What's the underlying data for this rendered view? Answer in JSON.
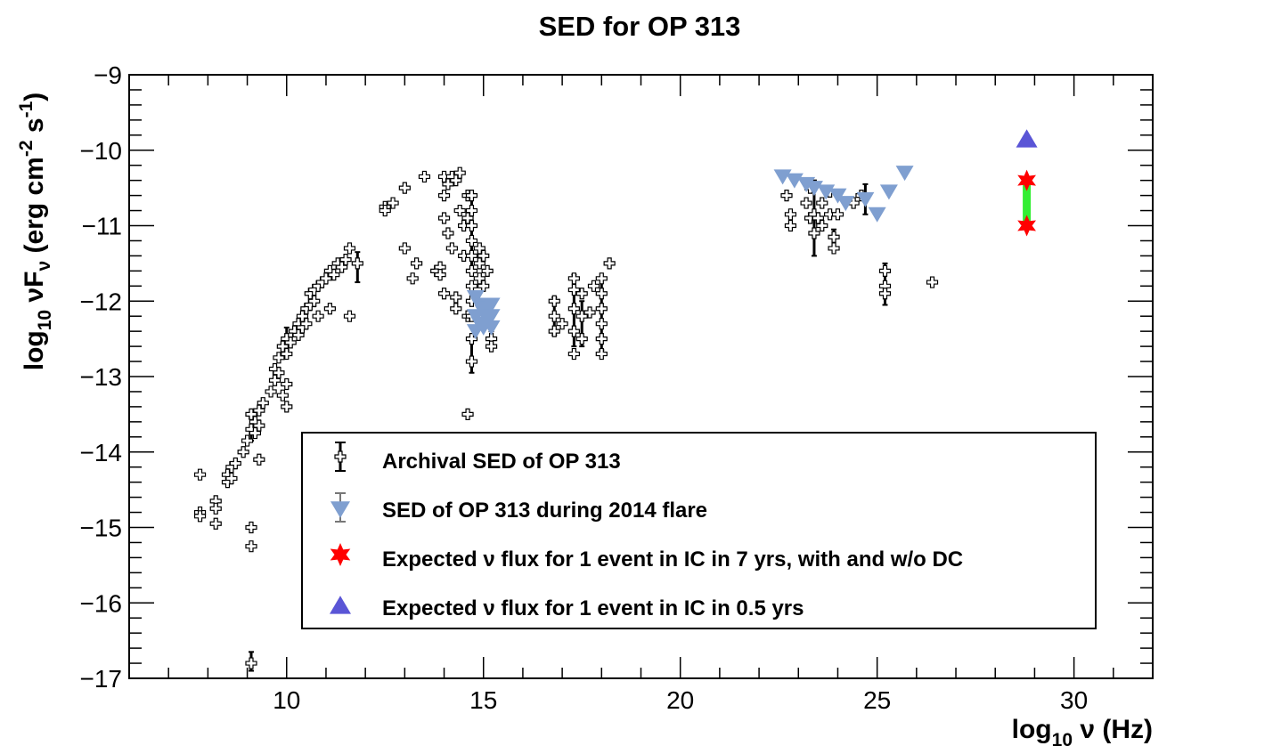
{
  "chart_data": {
    "type": "scatter",
    "title": "SED for OP 313",
    "xlabel": {
      "prefix": "log",
      "sub": "10",
      "suffix": " ν (Hz)"
    },
    "ylabel": {
      "prefix": "log",
      "sub": "10",
      "mid": " νF",
      "sub2": "ν",
      "rest": " (erg cm",
      "sup1": "-2",
      "rest2": " s",
      "sup2": "-1",
      "end": ")"
    },
    "xlim": [
      6,
      32
    ],
    "ylim": [
      -17,
      -9
    ],
    "x_ticks": [
      10,
      15,
      20,
      25,
      30
    ],
    "x_tick_labels": [
      "10",
      "15",
      "20",
      "25",
      "30"
    ],
    "y_ticks": [
      -17,
      -16,
      -15,
      -14,
      -13,
      -12,
      -11,
      -10,
      -9
    ],
    "y_tick_labels": [
      "−17",
      "−16",
      "−15",
      "−14",
      "−13",
      "−12",
      "−11",
      "−10",
      "−9"
    ],
    "legend": {
      "placement": "lower-center",
      "entries": [
        {
          "label": "Archival SED of OP 313",
          "marker": "cross-errorbar",
          "color": "#000000"
        },
        {
          "label": "SED of OP 313 during 2014 flare",
          "marker": "triangle-down",
          "color": "#7f9fd0"
        },
        {
          "label": "Expected ν flux for 1 event in IC in 7 yrs, with and w/o DC",
          "marker": "star",
          "color": "#ff0000"
        },
        {
          "label": "Expected ν flux for 1 event in IC in 0.5 yrs",
          "marker": "triangle-up",
          "color": "#5a55d6"
        }
      ]
    },
    "series": [
      {
        "name": "Archival SED of OP 313",
        "marker": "cross",
        "color": "#000000",
        "points": [
          [
            7.8,
            -14.3
          ],
          [
            7.8,
            -14.8
          ],
          [
            7.8,
            -14.85
          ],
          [
            8.2,
            -14.65
          ],
          [
            8.2,
            -14.75
          ],
          [
            8.2,
            -14.95
          ],
          [
            8.5,
            -14.3
          ],
          [
            8.5,
            -14.4
          ],
          [
            8.6,
            -14.2
          ],
          [
            8.6,
            -14.35
          ],
          [
            8.7,
            -14.15
          ],
          [
            8.9,
            -14.0
          ],
          [
            9.0,
            -13.85
          ],
          [
            9.1,
            -13.7
          ],
          [
            9.1,
            -13.5
          ],
          [
            9.2,
            -13.75
          ],
          [
            9.2,
            -13.6
          ],
          [
            9.3,
            -13.45
          ],
          [
            9.3,
            -13.65
          ],
          [
            9.4,
            -13.35
          ],
          [
            9.3,
            -14.1
          ],
          [
            9.1,
            -15.0
          ],
          [
            9.1,
            -15.25
          ],
          [
            9.1,
            -16.8
          ],
          [
            9.6,
            -13.2
          ],
          [
            9.7,
            -13.05
          ],
          [
            9.7,
            -12.9
          ],
          [
            9.8,
            -12.75
          ],
          [
            9.8,
            -12.95
          ],
          [
            9.9,
            -12.6
          ],
          [
            10.0,
            -12.7
          ],
          [
            10.0,
            -12.5
          ],
          [
            10.0,
            -13.4
          ],
          [
            10.0,
            -13.1
          ],
          [
            9.9,
            -13.25
          ],
          [
            10.1,
            -12.55
          ],
          [
            10.2,
            -12.4
          ],
          [
            10.3,
            -12.3
          ],
          [
            10.3,
            -12.45
          ],
          [
            10.4,
            -12.2
          ],
          [
            10.4,
            -12.35
          ],
          [
            10.5,
            -12.1
          ],
          [
            10.5,
            -12.3
          ],
          [
            10.6,
            -12.05
          ],
          [
            10.6,
            -11.9
          ],
          [
            10.7,
            -11.85
          ],
          [
            10.7,
            -12.0
          ],
          [
            10.8,
            -11.8
          ],
          [
            10.9,
            -11.75
          ],
          [
            11.0,
            -11.7
          ],
          [
            11.1,
            -11.6
          ],
          [
            11.2,
            -11.65
          ],
          [
            11.3,
            -11.5
          ],
          [
            11.4,
            -11.55
          ],
          [
            11.5,
            -11.45
          ],
          [
            11.6,
            -11.3
          ],
          [
            11.6,
            -12.2
          ],
          [
            11.8,
            -11.5
          ],
          [
            11.1,
            -12.1
          ],
          [
            10.8,
            -12.2
          ],
          [
            12.5,
            -10.75
          ],
          [
            12.5,
            -10.8
          ],
          [
            12.7,
            -10.7
          ],
          [
            13.0,
            -10.5
          ],
          [
            13.0,
            -11.3
          ],
          [
            13.2,
            -11.7
          ],
          [
            13.3,
            -11.5
          ],
          [
            13.5,
            -10.35
          ],
          [
            13.8,
            -11.6
          ],
          [
            13.9,
            -11.55
          ],
          [
            13.9,
            -11.65
          ],
          [
            14.0,
            -10.35
          ],
          [
            14.0,
            -10.6
          ],
          [
            14.0,
            -10.9
          ],
          [
            14.0,
            -11.9
          ],
          [
            14.1,
            -10.45
          ],
          [
            14.1,
            -11.1
          ],
          [
            14.2,
            -10.35
          ],
          [
            14.2,
            -11.3
          ],
          [
            14.3,
            -10.4
          ],
          [
            14.3,
            -11.95
          ],
          [
            14.3,
            -12.1
          ],
          [
            14.4,
            -10.3
          ],
          [
            14.4,
            -10.8
          ],
          [
            14.5,
            -11.0
          ],
          [
            14.5,
            -11.4
          ],
          [
            14.6,
            -10.6
          ],
          [
            14.6,
            -12.2
          ],
          [
            14.6,
            -10.9
          ],
          [
            14.7,
            -10.6
          ],
          [
            14.7,
            -10.8
          ],
          [
            14.7,
            -11.0
          ],
          [
            14.7,
            -11.2
          ],
          [
            14.7,
            -11.4
          ],
          [
            14.7,
            -11.6
          ],
          [
            14.7,
            -11.8
          ],
          [
            14.7,
            -12.0
          ],
          [
            14.7,
            -12.2
          ],
          [
            14.7,
            -12.5
          ],
          [
            14.7,
            -12.8
          ],
          [
            14.6,
            -13.5
          ],
          [
            14.9,
            -11.3
          ],
          [
            14.9,
            -11.5
          ],
          [
            14.9,
            -11.7
          ],
          [
            15.0,
            -11.4
          ],
          [
            15.0,
            -11.8
          ],
          [
            15.1,
            -11.6
          ],
          [
            15.2,
            -12.5
          ],
          [
            15.2,
            -12.6
          ],
          [
            16.8,
            -12.0
          ],
          [
            16.8,
            -12.2
          ],
          [
            16.8,
            -12.4
          ],
          [
            17.0,
            -12.3
          ],
          [
            17.3,
            -11.7
          ],
          [
            17.3,
            -11.85
          ],
          [
            17.3,
            -12.1
          ],
          [
            17.3,
            -12.4
          ],
          [
            17.3,
            -12.7
          ],
          [
            17.5,
            -11.9
          ],
          [
            17.5,
            -12.2
          ],
          [
            17.5,
            -12.5
          ],
          [
            17.7,
            -12.15
          ],
          [
            17.8,
            -11.8
          ],
          [
            18.0,
            -11.7
          ],
          [
            18.0,
            -11.9
          ],
          [
            18.0,
            -12.1
          ],
          [
            18.0,
            -12.3
          ],
          [
            18.0,
            -12.5
          ],
          [
            18.0,
            -12.7
          ],
          [
            18.2,
            -11.5
          ],
          [
            22.7,
            -10.6
          ],
          [
            22.8,
            -10.85
          ],
          [
            22.8,
            -11.0
          ],
          [
            23.2,
            -10.7
          ],
          [
            23.3,
            -10.5
          ],
          [
            23.3,
            -10.9
          ],
          [
            23.4,
            -10.85
          ],
          [
            23.4,
            -11.1
          ],
          [
            23.5,
            -10.9
          ],
          [
            23.6,
            -10.7
          ],
          [
            23.6,
            -11.0
          ],
          [
            23.8,
            -10.55
          ],
          [
            23.8,
            -10.85
          ],
          [
            24.0,
            -10.85
          ],
          [
            23.9,
            -11.15
          ],
          [
            23.9,
            -11.3
          ],
          [
            24.4,
            -10.7
          ],
          [
            24.6,
            -10.6
          ],
          [
            25.2,
            -11.6
          ],
          [
            25.2,
            -11.8
          ],
          [
            25.2,
            -11.9
          ],
          [
            26.4,
            -11.75
          ]
        ]
      },
      {
        "name": "SED of OP 313 during 2014 flare",
        "marker": "triangle-down",
        "color": "#7f9fd0",
        "points": [
          [
            14.8,
            -11.95
          ],
          [
            14.8,
            -12.2
          ],
          [
            14.8,
            -12.4
          ],
          [
            14.9,
            -12.05
          ],
          [
            14.9,
            -12.3
          ],
          [
            15.0,
            -12.15
          ],
          [
            15.0,
            -12.35
          ],
          [
            15.1,
            -12.1
          ],
          [
            15.1,
            -12.25
          ],
          [
            15.2,
            -12.2
          ],
          [
            15.2,
            -12.35
          ],
          [
            15.2,
            -12.05
          ],
          [
            22.6,
            -10.35
          ],
          [
            22.9,
            -10.4
          ],
          [
            23.2,
            -10.45
          ],
          [
            23.4,
            -10.5
          ],
          [
            23.7,
            -10.55
          ],
          [
            24.0,
            -10.6
          ],
          [
            24.2,
            -10.7
          ],
          [
            24.7,
            -10.65
          ],
          [
            25.0,
            -10.85
          ],
          [
            25.3,
            -10.55
          ],
          [
            25.7,
            -10.3
          ]
        ]
      },
      {
        "name": "Expected ν flux for 1 event in IC in 7 yrs, with and w/o DC",
        "marker": "star",
        "color": "#ff0000",
        "points": [
          [
            28.8,
            -10.4
          ],
          [
            28.8,
            -11.0
          ]
        ]
      },
      {
        "name": "Expected ν flux for 1 event in IC in 0.5 yrs",
        "marker": "triangle-up",
        "color": "#5a55d6",
        "points": [
          [
            28.8,
            -9.85
          ]
        ]
      }
    ],
    "errorbars": [
      [
        9.1,
        -16.75,
        -16.65,
        -16.9
      ],
      [
        9.1,
        -13.7,
        -13.55,
        -13.85
      ],
      [
        10.0,
        -12.5,
        -12.35,
        -12.65
      ],
      [
        11.8,
        -11.5,
        -11.35,
        -11.75
      ],
      [
        14.7,
        -11.1,
        -10.6,
        -11.6
      ],
      [
        14.7,
        -12.7,
        -12.5,
        -12.95
      ],
      [
        15.2,
        -12.5,
        -12.4,
        -12.6
      ],
      [
        16.8,
        -12.2,
        -11.95,
        -12.45
      ],
      [
        17.3,
        -12.1,
        -11.65,
        -12.6
      ],
      [
        17.5,
        -12.3,
        -12.0,
        -12.6
      ],
      [
        18.0,
        -12.2,
        -11.7,
        -12.65
      ],
      [
        23.4,
        -10.9,
        -10.4,
        -11.4
      ],
      [
        24.7,
        -10.65,
        -10.45,
        -10.85
      ],
      [
        23.9,
        -11.2,
        -11.05,
        -11.3
      ],
      [
        25.2,
        -11.8,
        -11.5,
        -12.05
      ]
    ],
    "ic_range": {
      "x": 28.8,
      "y_top": -10.4,
      "y_bottom": -11.0,
      "color": "#33ee33"
    }
  }
}
